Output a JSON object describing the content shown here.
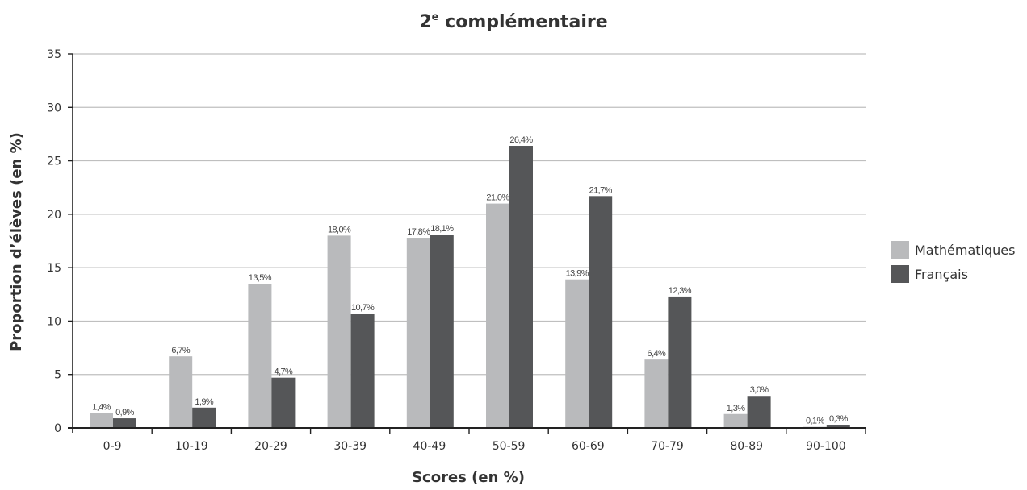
{
  "chart_data": {
    "type": "bar",
    "title": "2",
    "title_superscript": "e",
    "title_rest": " complémentaire",
    "xlabel": "Scores (en %)",
    "ylabel": "Proportion d’élèves (en %)",
    "ylim": [
      0,
      35
    ],
    "yticks": [
      "0",
      "5",
      "10",
      "15",
      "20",
      "25",
      "30",
      "35"
    ],
    "grid": true,
    "legend_position": "right",
    "categories": [
      "0-9",
      "10-19",
      "20-29",
      "30-39",
      "40-49",
      "50-59",
      "60-69",
      "70-79",
      "80-89",
      "90-100"
    ],
    "series": [
      {
        "name": "Mathématiques",
        "color": "#b9babc",
        "values": [
          1.4,
          6.7,
          13.5,
          18.0,
          17.8,
          21.0,
          13.9,
          6.4,
          1.3,
          0.1
        ],
        "labels": [
          "1,4%",
          "6,7%",
          "13,5%",
          "18,0%",
          "17,8%",
          "21,0%",
          "13,9%",
          "6,4%",
          "1,3%",
          "0,1%"
        ]
      },
      {
        "name": "Français",
        "color": "#555658",
        "values": [
          0.9,
          1.9,
          4.7,
          10.7,
          18.1,
          26.4,
          21.7,
          12.3,
          3.0,
          0.3
        ],
        "labels": [
          "0,9%",
          "1,9%",
          "4,7%",
          "10,7%",
          "18,1%",
          "26,4%",
          "21,7%",
          "12,3%",
          "3,0%",
          "0,3%"
        ]
      }
    ]
  }
}
